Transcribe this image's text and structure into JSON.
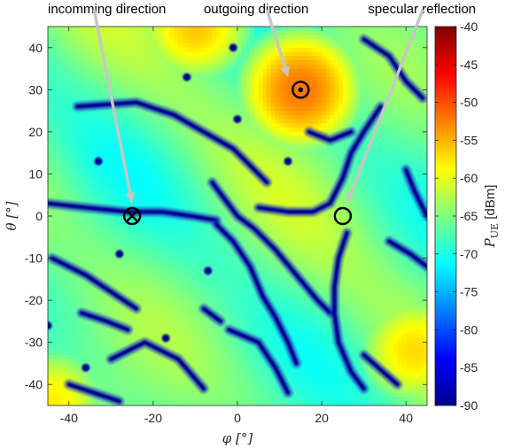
{
  "chart_data": {
    "type": "heatmap",
    "title": "",
    "xlabel": "φ [°]",
    "ylabel": "θ [°]",
    "xlim": [
      -45,
      45
    ],
    "ylim": [
      -45,
      45
    ],
    "x_ticks": [
      -40,
      -20,
      0,
      20,
      40
    ],
    "y_ticks": [
      40,
      30,
      20,
      10,
      0,
      -10,
      -20,
      -30,
      -40
    ],
    "colorbar": {
      "label_main": "P",
      "label_sub": "UE",
      "label_unit": " [dBm]",
      "range": [
        -90,
        -40
      ],
      "ticks": [
        -40,
        -45,
        -50,
        -55,
        -60,
        -65,
        -70,
        -75,
        -80,
        -85,
        -90
      ],
      "colormap": "jet"
    },
    "peaks": [
      {
        "x": 15,
        "y": 30,
        "value_dbm": -52
      },
      {
        "x": 42,
        "y": -32,
        "value_dbm": -57
      },
      {
        "x": -10,
        "y": 45,
        "value_dbm": -56
      },
      {
        "x": -44,
        "y": -44,
        "value_dbm": -58
      }
    ],
    "markers": [
      {
        "name": "incoming",
        "x": -25,
        "y": 0,
        "symbol": "circle-cross"
      },
      {
        "name": "outgoing",
        "x": 15,
        "y": 30,
        "symbol": "circle-dot"
      },
      {
        "name": "specular",
        "x": 25,
        "y": 0,
        "symbol": "circle"
      }
    ],
    "annotations": [
      {
        "label": "incomming direction",
        "text_x": -45,
        "text_y": 51,
        "arrow_from": [
          -34,
          49
        ],
        "arrow_to": [
          -25,
          3
        ]
      },
      {
        "label": "outgoing direction",
        "text_x": -8,
        "text_y": 51,
        "arrow_from": [
          7,
          49
        ],
        "arrow_to": [
          12,
          33
        ]
      },
      {
        "label": "specular reflection",
        "text_x": 31,
        "text_y": 51,
        "arrow_from": [
          44,
          49
        ],
        "arrow_to": [
          26,
          3
        ]
      }
    ]
  }
}
